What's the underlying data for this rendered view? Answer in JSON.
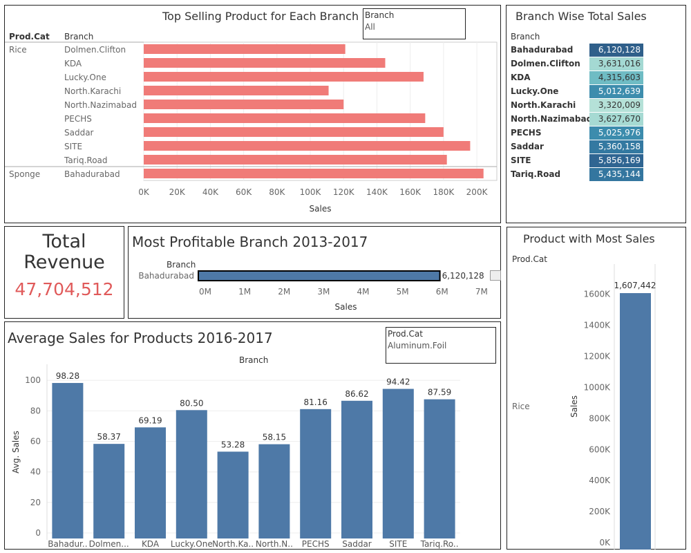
{
  "top_selling": {
    "title": "Top Selling Product for Each Branch",
    "filter_title": "Branch",
    "filter_value": "All",
    "col_prodcat": "Prod.Cat",
    "col_branch": "Branch",
    "color": "#f07b78",
    "chart_data": {
      "type": "bar",
      "orientation": "horizontal",
      "groups": [
        {
          "prod_cat": "Rice",
          "branches": [
            "Dolmen.Clifton",
            "KDA",
            "Lucky.One",
            "North.Karachi",
            "North.Nazimabad",
            "PECHS",
            "Saddar",
            "SITE",
            "Tariq.Road"
          ],
          "values": [
            121000,
            145000,
            168000,
            111000,
            120000,
            169000,
            180000,
            196000,
            182000
          ]
        },
        {
          "prod_cat": "Sponge",
          "branches": [
            "Bahadurabad"
          ],
          "values": [
            204000
          ]
        }
      ],
      "xlabel": "Sales",
      "xlim": [
        0,
        212000
      ],
      "xticks": [
        0,
        20000,
        40000,
        60000,
        80000,
        100000,
        120000,
        140000,
        160000,
        180000,
        200000
      ],
      "xtick_labels": [
        "0K",
        "20K",
        "40K",
        "60K",
        "80K",
        "100K",
        "120K",
        "140K",
        "160K",
        "180K",
        "200K"
      ]
    }
  },
  "branch_total": {
    "title": "Branch Wise Total Sales",
    "col_branch": "Branch",
    "chart_data": {
      "type": "table",
      "rows": [
        {
          "branch": "Bahadurabad",
          "value": "6,120,128",
          "color": "#2f5f8a",
          "text": "#ffffff"
        },
        {
          "branch": "Dolmen.Clifton",
          "value": "3,631,016",
          "color": "#a4d9d3",
          "text": "#333333"
        },
        {
          "branch": "KDA",
          "value": "4,315,603",
          "color": "#6fbcc4",
          "text": "#333333"
        },
        {
          "branch": "Lucky.One",
          "value": "5,012,639",
          "color": "#3d8dad",
          "text": "#ffffff"
        },
        {
          "branch": "North.Karachi",
          "value": "3,320,009",
          "color": "#b5e1d8",
          "text": "#333333"
        },
        {
          "branch": "North.Nazimabad",
          "value": "3,627,670",
          "color": "#a6dad3",
          "text": "#333333"
        },
        {
          "branch": "PECHS",
          "value": "5,025,976",
          "color": "#3c8cad",
          "text": "#ffffff"
        },
        {
          "branch": "Saddar",
          "value": "5,360,158",
          "color": "#3479a1",
          "text": "#ffffff"
        },
        {
          "branch": "SITE",
          "value": "5,856,169",
          "color": "#2f6592",
          "text": "#ffffff"
        },
        {
          "branch": "Tariq.Road",
          "value": "5,435,144",
          "color": "#34769f",
          "text": "#ffffff"
        }
      ]
    }
  },
  "kpi": {
    "title_line1": "Total",
    "title_line2": "Revenue",
    "value": "47,704,512",
    "color": "#e05a5a"
  },
  "most_profitable": {
    "title": "Most Profitable Branch 2013-2017",
    "col_branch": "Branch",
    "color": "#4e79a7",
    "chart_data": {
      "type": "bar",
      "orientation": "horizontal",
      "categories": [
        "Bahadurabad"
      ],
      "values": [
        6120128
      ],
      "value_labels": [
        "6,120,128"
      ],
      "xlabel": "Sales",
      "xlim": [
        0,
        7300000
      ],
      "xticks": [
        0,
        1000000,
        2000000,
        3000000,
        4000000,
        5000000,
        6000000,
        7000000
      ],
      "xtick_labels": [
        "0M",
        "1M",
        "2M",
        "3M",
        "4M",
        "5M",
        "6M",
        "7M"
      ]
    }
  },
  "avg_sales": {
    "title": "Average Sales for Products 2016-2017",
    "filter_title": "Prod.Cat",
    "filter_value": "Aluminum.Foil",
    "header": "Branch",
    "color": "#4e79a7",
    "chart_data": {
      "type": "bar",
      "categories": [
        "Bahadur..",
        "Dolmen...",
        "KDA",
        "Lucky.One",
        "North.Ka..",
        "North.N..",
        "PECHS",
        "Saddar",
        "SITE",
        "Tariq.Ro.."
      ],
      "values": [
        98.28,
        58.37,
        69.19,
        80.5,
        53.28,
        58.15,
        81.16,
        86.62,
        94.42,
        87.59
      ],
      "value_labels": [
        "98.28",
        "58.37",
        "69.19",
        "80.50",
        "53.28",
        "58.15",
        "81.16",
        "86.62",
        "94.42",
        "87.59"
      ],
      "ylabel": "Avg. Sales",
      "ylim": [
        0,
        106
      ],
      "yticks": [
        0,
        20,
        40,
        60,
        80,
        100
      ],
      "ytick_labels": [
        "0",
        "20",
        "40",
        "60",
        "80",
        "100"
      ]
    }
  },
  "most_sales": {
    "title": "Product with Most Sales",
    "col_prodcat": "Prod.Cat",
    "color": "#4e79a7",
    "chart_data": {
      "type": "bar",
      "categories": [
        "Rice"
      ],
      "values": [
        1607442
      ],
      "value_labels": [
        "1,607,442"
      ],
      "ylabel": "Sales",
      "ylim": [
        0,
        1710000
      ],
      "yticks": [
        0,
        200000,
        400000,
        600000,
        800000,
        1000000,
        1200000,
        1400000,
        1600000
      ],
      "ytick_labels": [
        "0K",
        "200K",
        "400K",
        "600K",
        "800K",
        "1000K",
        "1200K",
        "1400K",
        "1600K"
      ]
    }
  }
}
